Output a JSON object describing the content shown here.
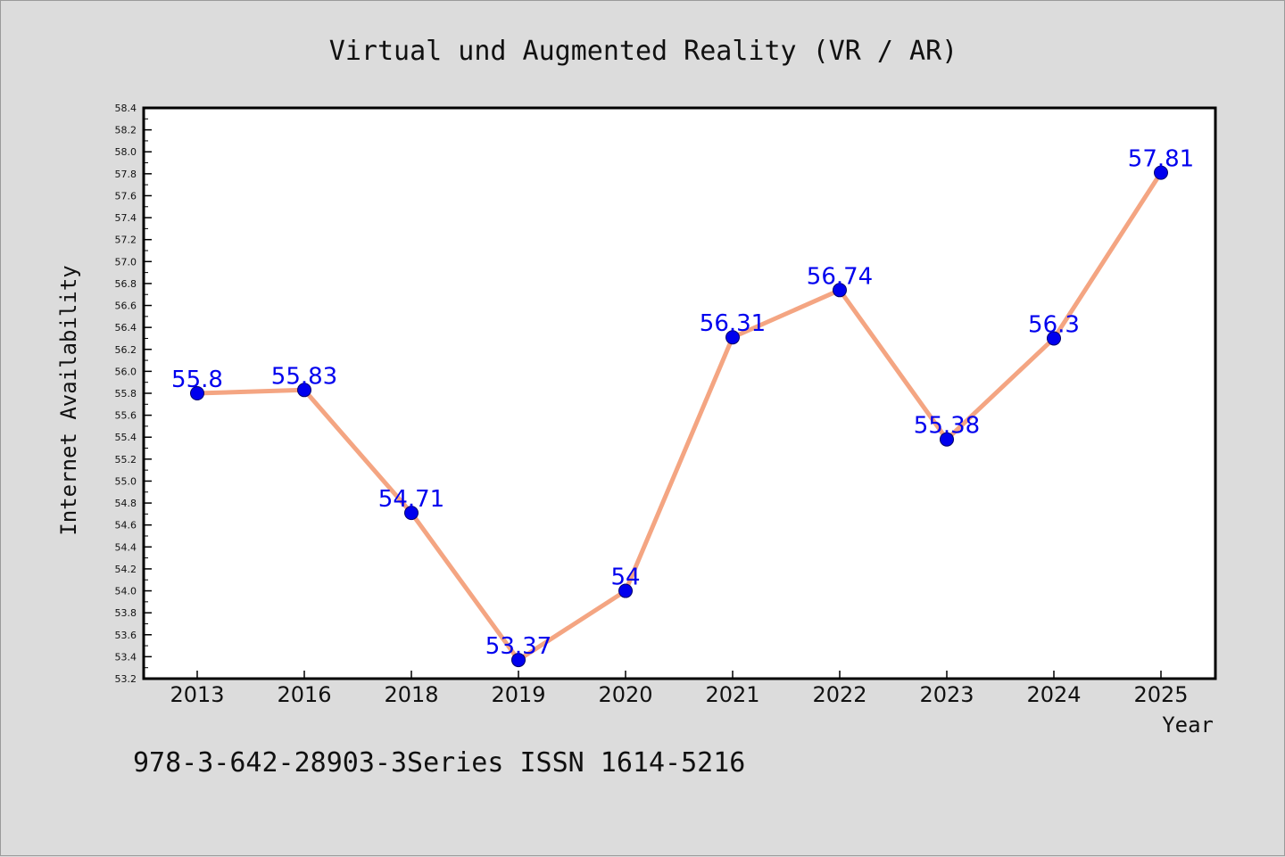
{
  "chart_data": {
    "type": "line",
    "title": "Virtual und Augmented Reality (VR / AR)",
    "xlabel": "Year",
    "ylabel": "Internet Availability",
    "categories": [
      "2013",
      "2016",
      "2018",
      "2019",
      "2020",
      "2021",
      "2022",
      "2023",
      "2024",
      "2025"
    ],
    "series": [
      {
        "values": [
          55.8,
          55.83,
          54.71,
          53.37,
          54,
          56.31,
          56.74,
          55.38,
          56.3,
          57.81
        ],
        "data_labels": [
          "55.8",
          "55.83",
          "54.71",
          "53.37",
          "54",
          "56.31",
          "56.74",
          "55.38",
          "56.3",
          "57.81"
        ]
      }
    ],
    "ylim": [
      53.2,
      58.4
    ],
    "yticks": [
      "53.2",
      "53.4",
      "53.6",
      "53.8",
      "54.0",
      "54.2",
      "54.4",
      "54.6",
      "54.8",
      "55.0",
      "55.2",
      "55.4",
      "55.6",
      "55.8",
      "56.0",
      "56.2",
      "56.4",
      "56.6",
      "56.8",
      "57.0",
      "57.2",
      "57.4",
      "57.6",
      "57.8",
      "58.0",
      "58.2",
      "58.4"
    ],
    "grid": false,
    "line_color": "#f4a582",
    "marker_color": "#0000ee",
    "data_label_color": "#0000ee",
    "background_color": "#dcdcdc",
    "plot_background_color": "#ffffff"
  },
  "footer": "978-3-642-28903-3Series ISSN 1614-5216"
}
